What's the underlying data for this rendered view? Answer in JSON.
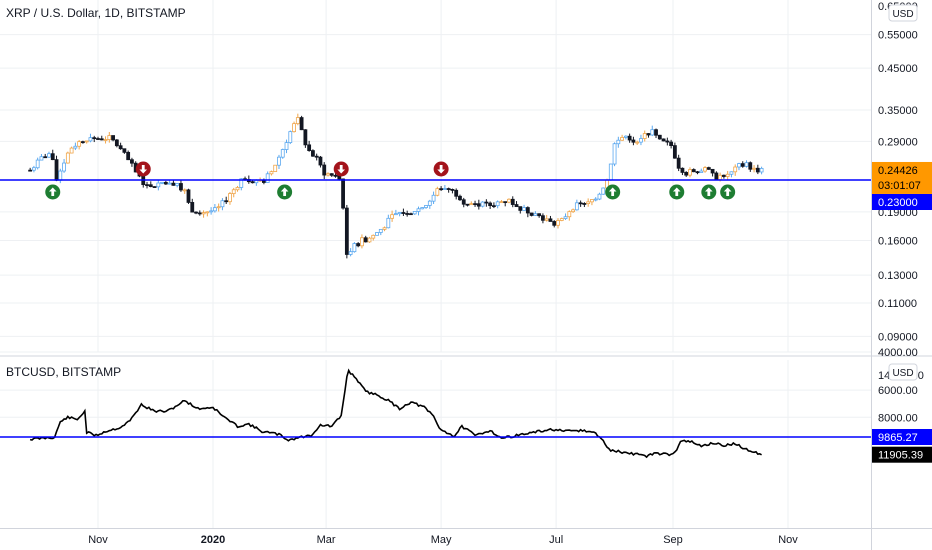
{
  "chart_data": [
    {
      "type": "candlestick",
      "title": "XRP / U.S. Dollar, 1D, BITSTAMP",
      "currency": "USD",
      "y_scale": "log",
      "ylim": [
        0.08,
        0.6
      ],
      "y_ticks": [
        "0.55000",
        "0.45000",
        "0.35000",
        "0.29000",
        "0.19000",
        "0.16000",
        "0.13000",
        "0.11000",
        "0.09000"
      ],
      "top_tick_partial": "0.65000",
      "last_price": "0.24426",
      "countdown": "03:01:07",
      "horizontal_line": "0.23000",
      "series_points": [
        [
          "2019-09-26",
          0.244
        ],
        [
          "2019-10-03",
          0.265
        ],
        [
          "2019-10-07",
          0.27
        ],
        [
          "2019-10-10",
          0.23
        ],
        [
          "2019-10-15",
          0.265
        ],
        [
          "2019-10-18",
          0.28
        ],
        [
          "2019-10-25",
          0.295
        ],
        [
          "2019-11-01",
          0.295
        ],
        [
          "2019-11-08",
          0.296
        ],
        [
          "2019-11-12",
          0.28
        ],
        [
          "2019-11-18",
          0.255
        ],
        [
          "2019-11-22",
          0.236
        ],
        [
          "2019-11-27",
          0.222
        ],
        [
          "2019-12-02",
          0.225
        ],
        [
          "2019-12-07",
          0.228
        ],
        [
          "2019-12-13",
          0.226
        ],
        [
          "2019-12-17",
          0.215
        ],
        [
          "2019-12-20",
          0.193
        ],
        [
          "2019-12-27",
          0.19
        ],
        [
          "2020-01-03",
          0.192
        ],
        [
          "2020-01-08",
          0.205
        ],
        [
          "2020-01-13",
          0.22
        ],
        [
          "2020-01-17",
          0.234
        ],
        [
          "2020-01-22",
          0.23
        ],
        [
          "2020-01-27",
          0.226
        ],
        [
          "2020-02-01",
          0.242
        ],
        [
          "2020-02-06",
          0.27
        ],
        [
          "2020-02-12",
          0.315
        ],
        [
          "2020-02-15",
          0.33
        ],
        [
          "2020-02-20",
          0.277
        ],
        [
          "2020-02-25",
          0.26
        ],
        [
          "2020-02-29",
          0.24
        ],
        [
          "2020-03-04",
          0.236
        ],
        [
          "2020-03-09",
          0.23
        ],
        [
          "2020-03-12",
          0.145
        ],
        [
          "2020-03-16",
          0.155
        ],
        [
          "2020-03-20",
          0.16
        ],
        [
          "2020-03-25",
          0.163
        ],
        [
          "2020-03-31",
          0.173
        ],
        [
          "2020-04-06",
          0.187
        ],
        [
          "2020-04-12",
          0.19
        ],
        [
          "2020-04-18",
          0.192
        ],
        [
          "2020-04-24",
          0.2
        ],
        [
          "2020-04-30",
          0.22
        ],
        [
          "2020-05-05",
          0.218
        ],
        [
          "2020-05-10",
          0.21
        ],
        [
          "2020-05-14",
          0.2
        ],
        [
          "2020-05-20",
          0.2
        ],
        [
          "2020-05-26",
          0.197
        ],
        [
          "2020-06-01",
          0.202
        ],
        [
          "2020-06-06",
          0.204
        ],
        [
          "2020-06-11",
          0.195
        ],
        [
          "2020-06-17",
          0.19
        ],
        [
          "2020-06-23",
          0.185
        ],
        [
          "2020-06-29",
          0.177
        ],
        [
          "2020-07-04",
          0.18
        ],
        [
          "2020-07-09",
          0.195
        ],
        [
          "2020-07-13",
          0.198
        ],
        [
          "2020-07-18",
          0.2
        ],
        [
          "2020-07-23",
          0.21
        ],
        [
          "2020-07-28",
          0.23
        ],
        [
          "2020-08-01",
          0.285
        ],
        [
          "2020-08-06",
          0.3
        ],
        [
          "2020-08-10",
          0.295
        ],
        [
          "2020-08-13",
          0.285
        ],
        [
          "2020-08-17",
          0.3
        ],
        [
          "2020-08-20",
          0.31
        ],
        [
          "2020-08-25",
          0.29
        ],
        [
          "2020-08-31",
          0.283
        ],
        [
          "2020-09-04",
          0.25
        ],
        [
          "2020-09-08",
          0.24
        ],
        [
          "2020-09-12",
          0.243
        ],
        [
          "2020-09-17",
          0.245
        ],
        [
          "2020-09-20",
          0.242
        ],
        [
          "2020-09-23",
          0.233
        ],
        [
          "2020-09-27",
          0.237
        ],
        [
          "2020-10-02",
          0.24
        ],
        [
          "2020-10-06",
          0.25
        ],
        [
          "2020-10-10",
          0.252
        ],
        [
          "2020-10-14",
          0.245
        ],
        [
          "2020-10-18",
          0.244
        ]
      ],
      "signals": [
        {
          "type": "up",
          "date": "2019-10-08"
        },
        {
          "type": "down",
          "date": "2019-11-25"
        },
        {
          "type": "up",
          "date": "2020-02-08"
        },
        {
          "type": "down",
          "date": "2020-03-09"
        },
        {
          "type": "down",
          "date": "2020-05-01"
        },
        {
          "type": "up",
          "date": "2020-07-31"
        },
        {
          "type": "up",
          "date": "2020-09-03"
        },
        {
          "type": "up",
          "date": "2020-09-20"
        },
        {
          "type": "up",
          "date": "2020-09-30"
        }
      ]
    },
    {
      "type": "line",
      "title": "BTCUSD, BITSTAMP",
      "currency": "USD",
      "y_scale": "log",
      "ylim": [
        3950,
        14500
      ],
      "y_ticks": [
        "8000.00",
        "6000.00",
        "4000.00"
      ],
      "top_tick_partial": "14000.00",
      "last_price": "11905.39",
      "horizontal_line": "9865.27",
      "series": [
        {
          "values": [
            [
              "2019-09-26",
              10100
            ],
            [
              "2019-10-05",
              9950
            ],
            [
              "2019-10-09",
              9900
            ],
            [
              "2019-10-12",
              8400
            ],
            [
              "2019-10-16",
              8000
            ],
            [
              "2019-10-21",
              8200
            ],
            [
              "2019-10-25",
              7500
            ],
            [
              "2019-10-26",
              9400
            ],
            [
              "2019-10-31",
              9700
            ],
            [
              "2019-11-05",
              9300
            ],
            [
              "2019-11-13",
              8900
            ],
            [
              "2019-11-18",
              8300
            ],
            [
              "2019-11-24",
              7000
            ],
            [
              "2019-12-01",
              7500
            ],
            [
              "2019-12-08",
              7500
            ],
            [
              "2019-12-17",
              6700
            ],
            [
              "2019-12-24",
              7300
            ],
            [
              "2020-01-01",
              7200
            ],
            [
              "2020-01-07",
              8000
            ],
            [
              "2020-01-14",
              8800
            ],
            [
              "2020-01-20",
              8600
            ],
            [
              "2020-01-27",
              9300
            ],
            [
              "2020-02-05",
              9600
            ],
            [
              "2020-02-10",
              10200
            ],
            [
              "2020-02-16",
              9900
            ],
            [
              "2020-02-22",
              9700
            ],
            [
              "2020-02-27",
              8700
            ],
            [
              "2020-03-04",
              8800
            ],
            [
              "2020-03-09",
              7900
            ],
            [
              "2020-03-12",
              5200
            ],
            [
              "2020-03-13",
              4900
            ],
            [
              "2020-03-17",
              5300
            ],
            [
              "2020-03-22",
              6100
            ],
            [
              "2020-03-28",
              6300
            ],
            [
              "2020-04-03",
              6700
            ],
            [
              "2020-04-09",
              7300
            ],
            [
              "2020-04-15",
              6800
            ],
            [
              "2020-04-22",
              7200
            ],
            [
              "2020-04-27",
              7900
            ],
            [
              "2020-04-30",
              9000
            ],
            [
              "2020-05-08",
              9800
            ],
            [
              "2020-05-12",
              8800
            ],
            [
              "2020-05-19",
              9700
            ],
            [
              "2020-05-27",
              9200
            ],
            [
              "2020-06-02",
              10000
            ],
            [
              "2020-06-10",
              9700
            ],
            [
              "2020-06-16",
              9500
            ],
            [
              "2020-06-22",
              9300
            ],
            [
              "2020-06-29",
              9100
            ],
            [
              "2020-07-06",
              9300
            ],
            [
              "2020-07-14",
              9200
            ],
            [
              "2020-07-21",
              9400
            ],
            [
              "2020-07-25",
              10000
            ],
            [
              "2020-07-29",
              11300
            ],
            [
              "2020-08-03",
              11500
            ],
            [
              "2020-08-10",
              11800
            ],
            [
              "2020-08-15",
              11800
            ],
            [
              "2020-08-18",
              12200
            ],
            [
              "2020-08-22",
              11700
            ],
            [
              "2020-08-31",
              11900
            ],
            [
              "2020-09-03",
              11200
            ],
            [
              "2020-09-05",
              10300
            ],
            [
              "2020-09-11",
              10400
            ],
            [
              "2020-09-16",
              10900
            ],
            [
              "2020-09-22",
              10500
            ],
            [
              "2020-09-28",
              10800
            ],
            [
              "2020-10-04",
              10600
            ],
            [
              "2020-10-10",
              11300
            ],
            [
              "2020-10-14",
              11500
            ],
            [
              "2020-10-18",
              11905
            ]
          ]
        }
      ]
    }
  ],
  "x_axis": {
    "labels": [
      {
        "text": "Nov",
        "date": "2019-11-01",
        "bold": false
      },
      {
        "text": "2020",
        "date": "2020-01-01",
        "bold": true
      },
      {
        "text": "Mar",
        "date": "2020-03-01",
        "bold": false
      },
      {
        "text": "May",
        "date": "2020-05-01",
        "bold": false
      },
      {
        "text": "Jul",
        "date": "2020-07-01",
        "bold": false
      },
      {
        "text": "Sep",
        "date": "2020-09-01",
        "bold": false
      },
      {
        "text": "Nov",
        "date": "2020-11-01",
        "bold": false
      }
    ]
  },
  "colors": {
    "background": "#ffffff",
    "grid": "#eef0f3",
    "h_line": "#0000ff",
    "candle_dark": "#131722",
    "candle_up_wick": "#5ba8ef",
    "candle_up_alt": "#f0a64b",
    "last_price_tag": "#ff9800",
    "signal_up": "#1e7d32",
    "signal_down": "#a3131b",
    "line": "#000000"
  }
}
